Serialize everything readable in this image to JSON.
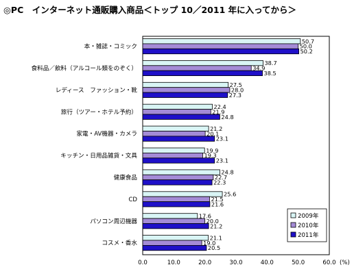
{
  "chart_data": {
    "type": "bar",
    "orientation": "horizontal",
    "title": "◎PC　インターネット通販購入商品＜トップ 10／2011 年に入ってから＞",
    "categories": [
      "本・雑誌・コミック",
      "食料品／飲料（アルコール類をのぞく）",
      "レディース　ファッション・靴",
      "旅行（ツアー・ホテル予約）",
      "家電・AV機器・カメラ",
      "キッチン・日用品雑貨・文具",
      "健康食品",
      "CD",
      "パソコン周辺機器",
      "コスメ・香水"
    ],
    "series": [
      {
        "name": "2009年",
        "color": "#d9f5f5",
        "values": [
          50.7,
          38.7,
          27.5,
          22.4,
          21.2,
          19.9,
          24.8,
          25.6,
          17.6,
          21.1
        ]
      },
      {
        "name": "2010年",
        "color": "#a48bd6",
        "values": [
          50.0,
          34.9,
          28.0,
          21.9,
          20.1,
          19.3,
          22.7,
          21.5,
          20.0,
          19.0
        ]
      },
      {
        "name": "2011年",
        "color": "#1f10c8",
        "values": [
          50.2,
          38.5,
          27.3,
          24.8,
          23.1,
          23.1,
          22.3,
          21.6,
          21.2,
          20.5
        ]
      }
    ],
    "xlim": [
      0,
      60
    ],
    "x_ticks": [
      "0.0",
      "10.0",
      "20.0",
      "30.0",
      "40.0",
      "50.0",
      "60.0"
    ],
    "x_unit": "(%)",
    "grid": false,
    "legend_position": "bottom-right"
  }
}
